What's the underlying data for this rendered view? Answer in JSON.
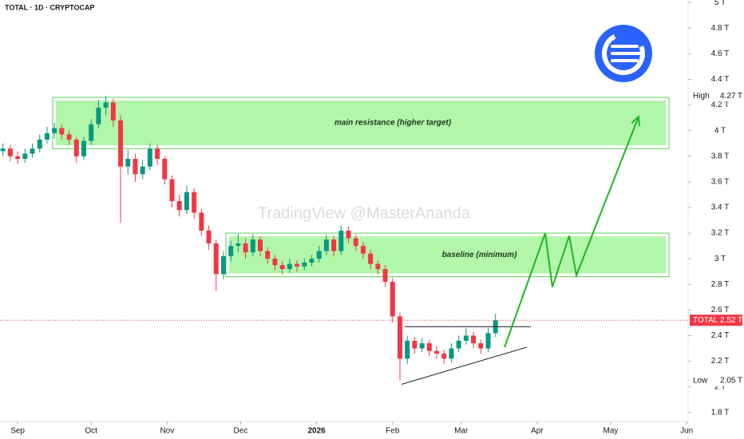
{
  "chart_data": {
    "type": "candlestick",
    "title": "TOTAL · 1D · CRYPTOCAP",
    "watermark": "TradingView @MasterAnanda",
    "x": [
      -6,
      -3,
      0,
      3,
      6,
      9,
      12,
      15,
      18,
      21,
      24,
      27,
      30,
      33,
      36,
      39,
      42,
      45,
      48,
      51,
      54,
      57,
      60,
      63,
      66,
      69,
      72,
      75,
      78,
      81,
      84,
      87,
      90,
      93,
      96,
      99,
      102,
      105,
      108,
      111,
      114,
      117,
      120,
      123,
      126,
      129,
      132,
      135,
      138,
      141,
      144,
      147,
      150,
      153,
      156,
      159,
      162,
      165,
      168,
      171,
      174,
      177,
      180,
      183,
      186,
      189,
      192,
      195
    ],
    "open": [
      3.84,
      3.86,
      3.8,
      3.78,
      3.82,
      3.86,
      3.93,
      3.98,
      4.02,
      3.97,
      3.93,
      3.8,
      3.92,
      4.05,
      4.18,
      4.22,
      4.08,
      3.72,
      3.78,
      3.66,
      3.72,
      3.86,
      3.78,
      3.62,
      3.45,
      3.38,
      3.52,
      3.36,
      3.22,
      3.12,
      2.88,
      3.02,
      3.1,
      3.12,
      3.05,
      3.15,
      3.06,
      3.0,
      2.95,
      2.92,
      2.96,
      2.94,
      2.97,
      3.0,
      3.06,
      3.15,
      3.06,
      3.22,
      3.16,
      3.1,
      3.04,
      2.96,
      2.92,
      2.82,
      2.55,
      2.22,
      2.36,
      2.3,
      2.34,
      2.28,
      2.26,
      2.22,
      2.3,
      2.36,
      2.4,
      2.34,
      2.3,
      2.42
    ],
    "high": [
      3.9,
      3.89,
      3.84,
      3.86,
      3.9,
      3.97,
      4.03,
      4.06,
      4.05,
      4.0,
      3.95,
      3.95,
      4.09,
      4.24,
      4.27,
      4.25,
      4.12,
      3.85,
      3.82,
      3.77,
      3.9,
      3.89,
      3.8,
      3.65,
      3.5,
      3.57,
      3.55,
      3.39,
      3.26,
      3.15,
      3.06,
      3.14,
      3.19,
      3.16,
      3.19,
      3.18,
      3.09,
      3.03,
      2.98,
      3.0,
      2.99,
      3.0,
      3.03,
      3.1,
      3.19,
      3.18,
      3.26,
      3.25,
      3.19,
      3.13,
      3.07,
      2.99,
      2.95,
      2.85,
      2.58,
      2.4,
      2.39,
      2.38,
      2.37,
      2.32,
      2.29,
      2.34,
      2.4,
      2.46,
      2.43,
      2.37,
      2.46,
      2.57
    ],
    "low": [
      3.8,
      3.76,
      3.74,
      3.75,
      3.79,
      3.83,
      3.9,
      3.94,
      3.93,
      3.89,
      3.75,
      3.77,
      3.89,
      4.02,
      4.12,
      4.03,
      3.28,
      3.66,
      3.6,
      3.62,
      3.69,
      3.73,
      3.58,
      3.4,
      3.33,
      3.35,
      3.31,
      3.18,
      3.07,
      2.75,
      2.84,
      2.98,
      3.05,
      3.0,
      3.02,
      3.02,
      2.96,
      2.91,
      2.88,
      2.89,
      2.9,
      2.91,
      2.94,
      2.97,
      3.03,
      3.02,
      3.03,
      3.12,
      3.06,
      3.0,
      2.92,
      2.88,
      2.78,
      2.5,
      2.05,
      2.18,
      2.26,
      2.27,
      2.24,
      2.22,
      2.18,
      2.19,
      2.27,
      2.33,
      2.3,
      2.26,
      2.27,
      2.39
    ],
    "close": [
      3.86,
      3.8,
      3.78,
      3.82,
      3.86,
      3.93,
      3.98,
      4.02,
      3.97,
      3.93,
      3.8,
      3.92,
      4.05,
      4.18,
      4.22,
      4.08,
      3.72,
      3.78,
      3.66,
      3.72,
      3.86,
      3.78,
      3.62,
      3.45,
      3.38,
      3.52,
      3.36,
      3.22,
      3.12,
      2.88,
      3.02,
      3.1,
      3.12,
      3.05,
      3.15,
      3.06,
      3.0,
      2.95,
      2.92,
      2.96,
      2.94,
      2.97,
      3.0,
      3.06,
      3.15,
      3.06,
      3.22,
      3.16,
      3.1,
      3.04,
      2.96,
      2.92,
      2.82,
      2.55,
      2.22,
      2.36,
      2.3,
      2.34,
      2.28,
      2.26,
      2.22,
      2.3,
      2.36,
      2.4,
      2.34,
      2.3,
      2.42,
      2.52
    ],
    "up_color": "#089981",
    "down_color": "#f23645",
    "xlim": [
      -7.2,
      273.6
    ],
    "xticks": [
      {
        "value": 0,
        "label": "Sep"
      },
      {
        "value": 30,
        "label": "Oct"
      },
      {
        "value": 61,
        "label": "Nov"
      },
      {
        "value": 91,
        "label": "Dec"
      },
      {
        "value": 122,
        "label": "2026"
      },
      {
        "value": 153,
        "label": "Feb"
      },
      {
        "value": 181,
        "label": "Mar"
      },
      {
        "value": 212,
        "label": "Apr"
      },
      {
        "value": 242,
        "label": "May"
      },
      {
        "value": 273,
        "label": "Jun"
      }
    ],
    "ylim": [
      1.73,
      5.02
    ],
    "yticks": [
      {
        "value": 1.8,
        "label": "1.8 T"
      },
      {
        "value": 2,
        "label": "2 T"
      },
      {
        "value": 2.2,
        "label": "2.2 T"
      },
      {
        "value": 2.4,
        "label": "2.4 T"
      },
      {
        "value": 2.6,
        "label": "2.6 T"
      },
      {
        "value": 2.8,
        "label": "2.8 T"
      },
      {
        "value": 3,
        "label": "3 T"
      },
      {
        "value": 3.2,
        "label": "3.2 T"
      },
      {
        "value": 3.4,
        "label": "3.4 T"
      },
      {
        "value": 3.6,
        "label": "3.6 T"
      },
      {
        "value": 3.8,
        "label": "3.8 T"
      },
      {
        "value": 4,
        "label": "4 T"
      },
      {
        "value": 4.2,
        "label": "4.2 T"
      },
      {
        "value": 4.4,
        "label": "4.4 T"
      },
      {
        "value": 4.6,
        "label": "4.6 T"
      },
      {
        "value": 4.8,
        "label": "4.8 T"
      },
      {
        "value": 5,
        "label": "5 T"
      }
    ],
    "zones": [
      {
        "label": "main resistance (higher target)",
        "xlim": [
          14.3,
          265.8
        ],
        "ylim": [
          3.86,
          4.26
        ],
        "color": "#a8f5a0"
      },
      {
        "label": "baseline (minimum)",
        "xlim": [
          85,
          265.8
        ],
        "ylim": [
          2.86,
          3.2
        ],
        "color": "#a8f5a0"
      }
    ],
    "trendlines": [
      {
        "x": [
          156.7,
          207.8
        ],
        "y": [
          2.02,
          2.31
        ]
      },
      {
        "x": [
          158,
          209.4
        ],
        "y": [
          2.47,
          2.47
        ]
      }
    ],
    "projection": {
      "x": [
        198.7,
        215.3,
        218.2,
        225.1,
        228.0,
        253.4
      ],
      "y": [
        2.31,
        3.2,
        2.78,
        3.18,
        2.87,
        4.11
      ],
      "color": "#1fb51f"
    },
    "markers": [
      {
        "label": "High",
        "value": 4.27,
        "value_label": "4.27 T",
        "color": "#ffffff"
      },
      {
        "label": "TOTAL",
        "value": 2.52,
        "value_label": "2.52 T",
        "color": "#f23645"
      },
      {
        "label": "Low",
        "value": 2.05,
        "value_label": "2.05 T",
        "color": "#ffffff"
      }
    ]
  }
}
